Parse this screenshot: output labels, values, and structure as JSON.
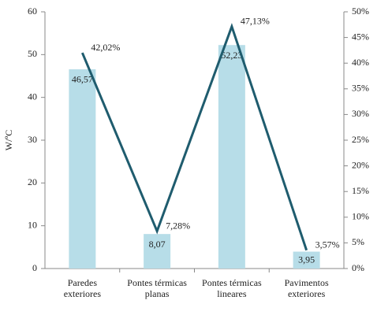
{
  "chart_data": {
    "type": "bar",
    "y_label": "W/ºC",
    "categories": [
      "Paredes\nexteriores",
      "Pontes térmicas\nplanas",
      "Pontes térmicas\nlineares",
      "Pavimentos\nexteriores"
    ],
    "series": [
      {
        "type": "bar",
        "color": "#b7dde8",
        "values": [
          46.57,
          8.07,
          52.23,
          3.95
        ],
        "value_labels": [
          "46,57",
          "8,07",
          "52,23",
          "3,95"
        ]
      },
      {
        "type": "line",
        "axis": "y2",
        "color": "#1f5c6e",
        "values": [
          42.02,
          7.28,
          47.13,
          3.57
        ],
        "value_labels": [
          "42,02%",
          "7,28%",
          "47,13%",
          "3,57%"
        ]
      }
    ],
    "ylim": [
      0,
      60
    ],
    "yticks": [
      0,
      10,
      20,
      30,
      40,
      50,
      60
    ],
    "y2lim": [
      0,
      50
    ],
    "y2ticks": [
      {
        "value": 0,
        "label": "0%"
      },
      {
        "value": 5,
        "label": "5%"
      },
      {
        "value": 10,
        "label": "10%"
      },
      {
        "value": 15,
        "label": "15%"
      },
      {
        "value": 20,
        "label": "20%"
      },
      {
        "value": 25,
        "label": "25%"
      },
      {
        "value": 30,
        "label": "30%"
      },
      {
        "value": 35,
        "label": "35%"
      },
      {
        "value": 40,
        "label": "40%"
      },
      {
        "value": 45,
        "label": "45%"
      },
      {
        "value": 50,
        "label": "50%"
      }
    ],
    "grid": false
  }
}
